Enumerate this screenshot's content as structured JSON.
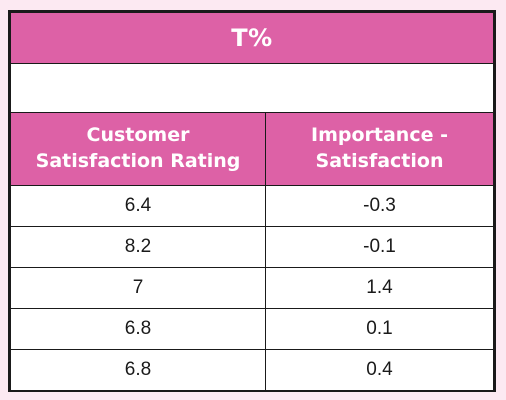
{
  "chart_data": {
    "type": "table",
    "title": "T%",
    "columns": [
      "Customer Satisfaction Rating",
      "Importance - Satisfaction"
    ],
    "header_lines": [
      [
        "Customer",
        "Satisfaction Rating"
      ],
      [
        "Importance -",
        "Satisfaction"
      ]
    ],
    "rows": [
      [
        "6.4",
        "-0.3"
      ],
      [
        "8.2",
        "-0.1"
      ],
      [
        "7",
        "1.4"
      ],
      [
        "6.8",
        "0.1"
      ],
      [
        "6.8",
        "0.4"
      ]
    ]
  },
  "colors": {
    "header_background": "#dd61a6",
    "header_text": "#ffffff",
    "page_background": "#fce9f2",
    "border": "#1a1a1a"
  }
}
